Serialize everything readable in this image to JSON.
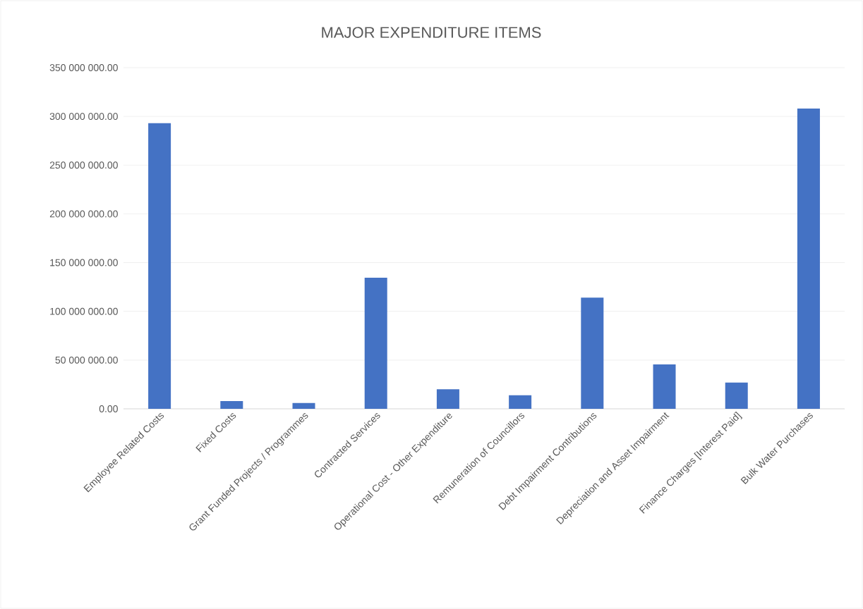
{
  "chart_data": {
    "type": "bar",
    "title": "MAJOR EXPENDITURE ITEMS",
    "categories": [
      "Employee Related Costs",
      "Fixed  Costs",
      "Grant Funded Projects / Programmes",
      "Contracted Services",
      "Operational Cost - Other Expenditure",
      "Remuneration of Councillors",
      "Debt Impairment Contributions",
      "Depreciation and Asset Impairment",
      "Finance Charges [Interest Paid]",
      "Bulk Water Purchases"
    ],
    "values": [
      293000000,
      8000000,
      6000000,
      134500000,
      20000000,
      14000000,
      114000000,
      45500000,
      27000000,
      308000000
    ],
    "color": "#4472c4",
    "ylim": [
      0,
      350000000
    ],
    "yticks": [
      {
        "value": 0,
        "label": "0.00"
      },
      {
        "value": 50000000,
        "label": "50 000 000.00"
      },
      {
        "value": 100000000,
        "label": "100 000 000.00"
      },
      {
        "value": 150000000,
        "label": "150 000 000.00"
      },
      {
        "value": 200000000,
        "label": "200 000 000.00"
      },
      {
        "value": 250000000,
        "label": "250 000 000.00"
      },
      {
        "value": 300000000,
        "label": "300 000 000.00"
      },
      {
        "value": 350000000,
        "label": "350 000 000.00"
      }
    ],
    "grid": "y"
  }
}
